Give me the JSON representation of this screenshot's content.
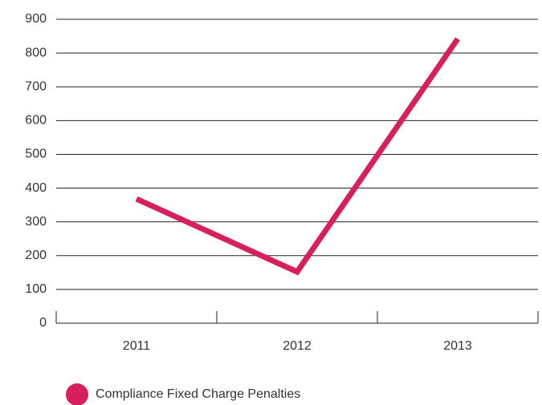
{
  "chart_data": {
    "type": "line",
    "categories": [
      "2011",
      "2012",
      "2013"
    ],
    "series": [
      {
        "name": "Compliance Fixed Charge Penalties",
        "color": "#d81f5e",
        "values": [
          368,
          152,
          842
        ]
      }
    ],
    "ylim": [
      0,
      900
    ],
    "yticks": [
      0,
      100,
      200,
      300,
      400,
      500,
      600,
      700,
      800,
      900
    ],
    "grid": true
  }
}
